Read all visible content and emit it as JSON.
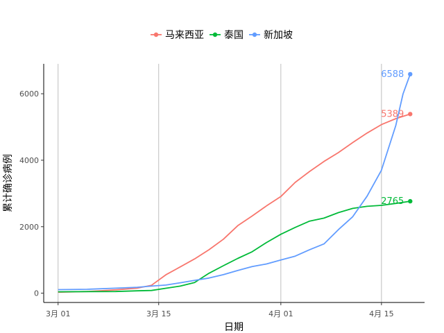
{
  "chart_data": {
    "type": "line",
    "xlabel": "日期",
    "ylabel": "累计确诊病例",
    "x_ticks": [
      {
        "date": "2020-03-01",
        "label": "3月 01"
      },
      {
        "date": "2020-03-15",
        "label": "3月 15"
      },
      {
        "date": "2020-04-01",
        "label": "4月 01"
      },
      {
        "date": "2020-04-15",
        "label": "4月 15"
      }
    ],
    "xlim": [
      "2020-02-28",
      "2020-04-21"
    ],
    "y_ticks": [
      0,
      2000,
      4000,
      6000
    ],
    "ylim": [
      -280,
      6900
    ],
    "grid": "vertical lines at x ticks",
    "legend_position": "top",
    "series": [
      {
        "name": "马来西亚",
        "color": "#F8766D",
        "end_label": "5389",
        "points": [
          [
            "2020-03-01",
            29
          ],
          [
            "2020-03-05",
            50
          ],
          [
            "2020-03-09",
            99
          ],
          [
            "2020-03-12",
            149
          ],
          [
            "2020-03-14",
            238
          ],
          [
            "2020-03-16",
            553
          ],
          [
            "2020-03-18",
            790
          ],
          [
            "2020-03-20",
            1030
          ],
          [
            "2020-03-22",
            1306
          ],
          [
            "2020-03-24",
            1624
          ],
          [
            "2020-03-26",
            2031
          ],
          [
            "2020-03-28",
            2320
          ],
          [
            "2020-03-30",
            2626
          ],
          [
            "2020-04-01",
            2908
          ],
          [
            "2020-04-03",
            3333
          ],
          [
            "2020-04-05",
            3662
          ],
          [
            "2020-04-07",
            3963
          ],
          [
            "2020-04-09",
            4228
          ],
          [
            "2020-04-11",
            4530
          ],
          [
            "2020-04-13",
            4817
          ],
          [
            "2020-04-15",
            5072
          ],
          [
            "2020-04-17",
            5251
          ],
          [
            "2020-04-19",
            5389
          ]
        ]
      },
      {
        "name": "泰国",
        "color": "#00BA38",
        "end_label": "2765",
        "points": [
          [
            "2020-03-01",
            42
          ],
          [
            "2020-03-05",
            47
          ],
          [
            "2020-03-09",
            50
          ],
          [
            "2020-03-12",
            70
          ],
          [
            "2020-03-14",
            82
          ],
          [
            "2020-03-16",
            147
          ],
          [
            "2020-03-18",
            212
          ],
          [
            "2020-03-20",
            322
          ],
          [
            "2020-03-22",
            599
          ],
          [
            "2020-03-24",
            827
          ],
          [
            "2020-03-26",
            1045
          ],
          [
            "2020-03-28",
            1245
          ],
          [
            "2020-03-30",
            1524
          ],
          [
            "2020-04-01",
            1771
          ],
          [
            "2020-04-03",
            1978
          ],
          [
            "2020-04-05",
            2169
          ],
          [
            "2020-04-07",
            2258
          ],
          [
            "2020-04-09",
            2423
          ],
          [
            "2020-04-11",
            2551
          ],
          [
            "2020-04-13",
            2613
          ],
          [
            "2020-04-15",
            2643
          ],
          [
            "2020-04-17",
            2700
          ],
          [
            "2020-04-19",
            2765
          ]
        ]
      },
      {
        "name": "新加坡",
        "color": "#619CFF",
        "end_label": "6588",
        "points": [
          [
            "2020-03-01",
            106
          ],
          [
            "2020-03-05",
            117
          ],
          [
            "2020-03-09",
            150
          ],
          [
            "2020-03-12",
            178
          ],
          [
            "2020-03-14",
            212
          ],
          [
            "2020-03-16",
            243
          ],
          [
            "2020-03-18",
            313
          ],
          [
            "2020-03-20",
            385
          ],
          [
            "2020-03-22",
            455
          ],
          [
            "2020-03-24",
            558
          ],
          [
            "2020-03-26",
            683
          ],
          [
            "2020-03-28",
            802
          ],
          [
            "2020-03-30",
            879
          ],
          [
            "2020-04-01",
            1000
          ],
          [
            "2020-04-03",
            1114
          ],
          [
            "2020-04-05",
            1309
          ],
          [
            "2020-04-07",
            1481
          ],
          [
            "2020-04-09",
            1910
          ],
          [
            "2020-04-11",
            2299
          ],
          [
            "2020-04-13",
            2918
          ],
          [
            "2020-04-15",
            3699
          ],
          [
            "2020-04-17",
            5050
          ],
          [
            "2020-04-18",
            5992
          ],
          [
            "2020-04-19",
            6588
          ]
        ]
      }
    ]
  }
}
